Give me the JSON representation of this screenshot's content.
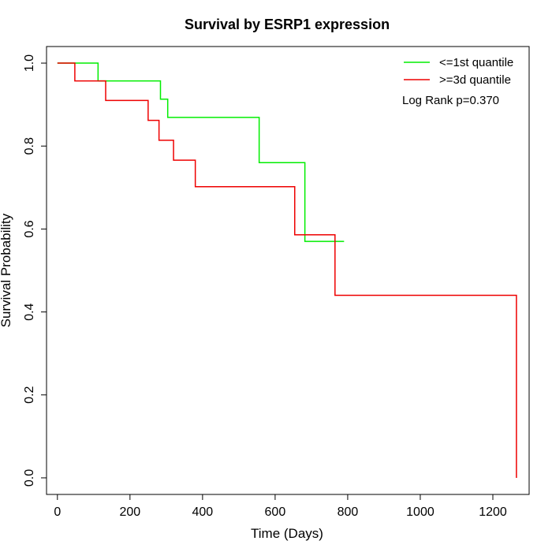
{
  "chart_data": {
    "type": "line",
    "title": "Survival by ESRP1 expression",
    "xlabel": "Time (Days)",
    "ylabel": "Survival Probability",
    "xlim": [
      -30,
      1300
    ],
    "ylim": [
      -0.04,
      1.04
    ],
    "x_ticks": [
      0,
      200,
      400,
      600,
      800,
      1000,
      1200
    ],
    "x_tick_labels": [
      "0",
      "200",
      "400",
      "600",
      "800",
      "1000",
      "1200"
    ],
    "y_ticks": [
      0.0,
      0.2,
      0.4,
      0.6,
      0.8,
      1.0
    ],
    "y_tick_labels": [
      "0.0",
      "0.2",
      "0.4",
      "0.6",
      "0.8",
      "1.0"
    ],
    "grid": false,
    "legend_position": "top-right",
    "annotation": "Log Rank p=0.370",
    "series": [
      {
        "name": "<=1st quantile",
        "color": "#00ee00",
        "step": true,
        "times": [
          0,
          112,
          284,
          304,
          556,
          682,
          790
        ],
        "survival": [
          1.0,
          0.957,
          0.913,
          0.869,
          0.76,
          0.57,
          0.57
        ]
      },
      {
        "name": ">=3d quantile",
        "color": "#ee0000",
        "step": true,
        "times": [
          0,
          48,
          133,
          250,
          280,
          320,
          380,
          654,
          765,
          1265
        ],
        "survival": [
          1.0,
          0.957,
          0.91,
          0.862,
          0.814,
          0.766,
          0.702,
          0.586,
          0.44,
          0.0
        ]
      }
    ]
  }
}
